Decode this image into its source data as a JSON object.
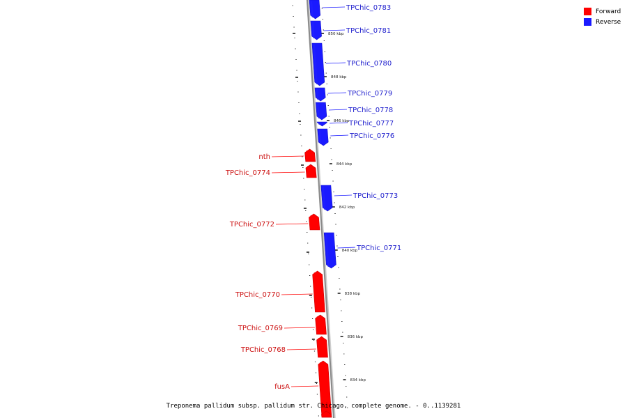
{
  "legend": {
    "items": [
      {
        "label": "Forward",
        "color": "#ff0000"
      },
      {
        "label": "Reverse",
        "color": "#1a1aff"
      }
    ]
  },
  "caption": "Treponema pallidum subsp. pallidum str. Chicago, complete genome. - 0..1139281",
  "colors": {
    "forward": "#ff0000",
    "reverse": "#1a1aff",
    "backbone": "#8a8a8a"
  },
  "tick_labels": [
    "850 kbp",
    "848 kbp",
    "846 kbp",
    "844 kbp",
    "842 kbp",
    "840 kbp",
    "838 kbp",
    "836 kbp",
    "834 kbp"
  ],
  "genes": [
    {
      "label": "TPChic_0783",
      "strand": "reverse"
    },
    {
      "label": "TPChic_0781",
      "strand": "reverse"
    },
    {
      "label": "TPChic_0780",
      "strand": "reverse"
    },
    {
      "label": "TPChic_0779",
      "strand": "reverse"
    },
    {
      "label": "TPChic_0778",
      "strand": "reverse"
    },
    {
      "label": "TPChic_0777",
      "strand": "reverse"
    },
    {
      "label": "TPChic_0776",
      "strand": "reverse"
    },
    {
      "label": "nth",
      "strand": "forward"
    },
    {
      "label": "TPChic_0774",
      "strand": "forward"
    },
    {
      "label": "TPChic_0773",
      "strand": "reverse"
    },
    {
      "label": "TPChic_0772",
      "strand": "forward"
    },
    {
      "label": "TPChic_0771",
      "strand": "reverse"
    },
    {
      "label": "TPChic_0770",
      "strand": "forward"
    },
    {
      "label": "TPChic_0769",
      "strand": "forward"
    },
    {
      "label": "TPChic_0768",
      "strand": "forward"
    },
    {
      "label": "fusA",
      "strand": "forward"
    }
  ]
}
